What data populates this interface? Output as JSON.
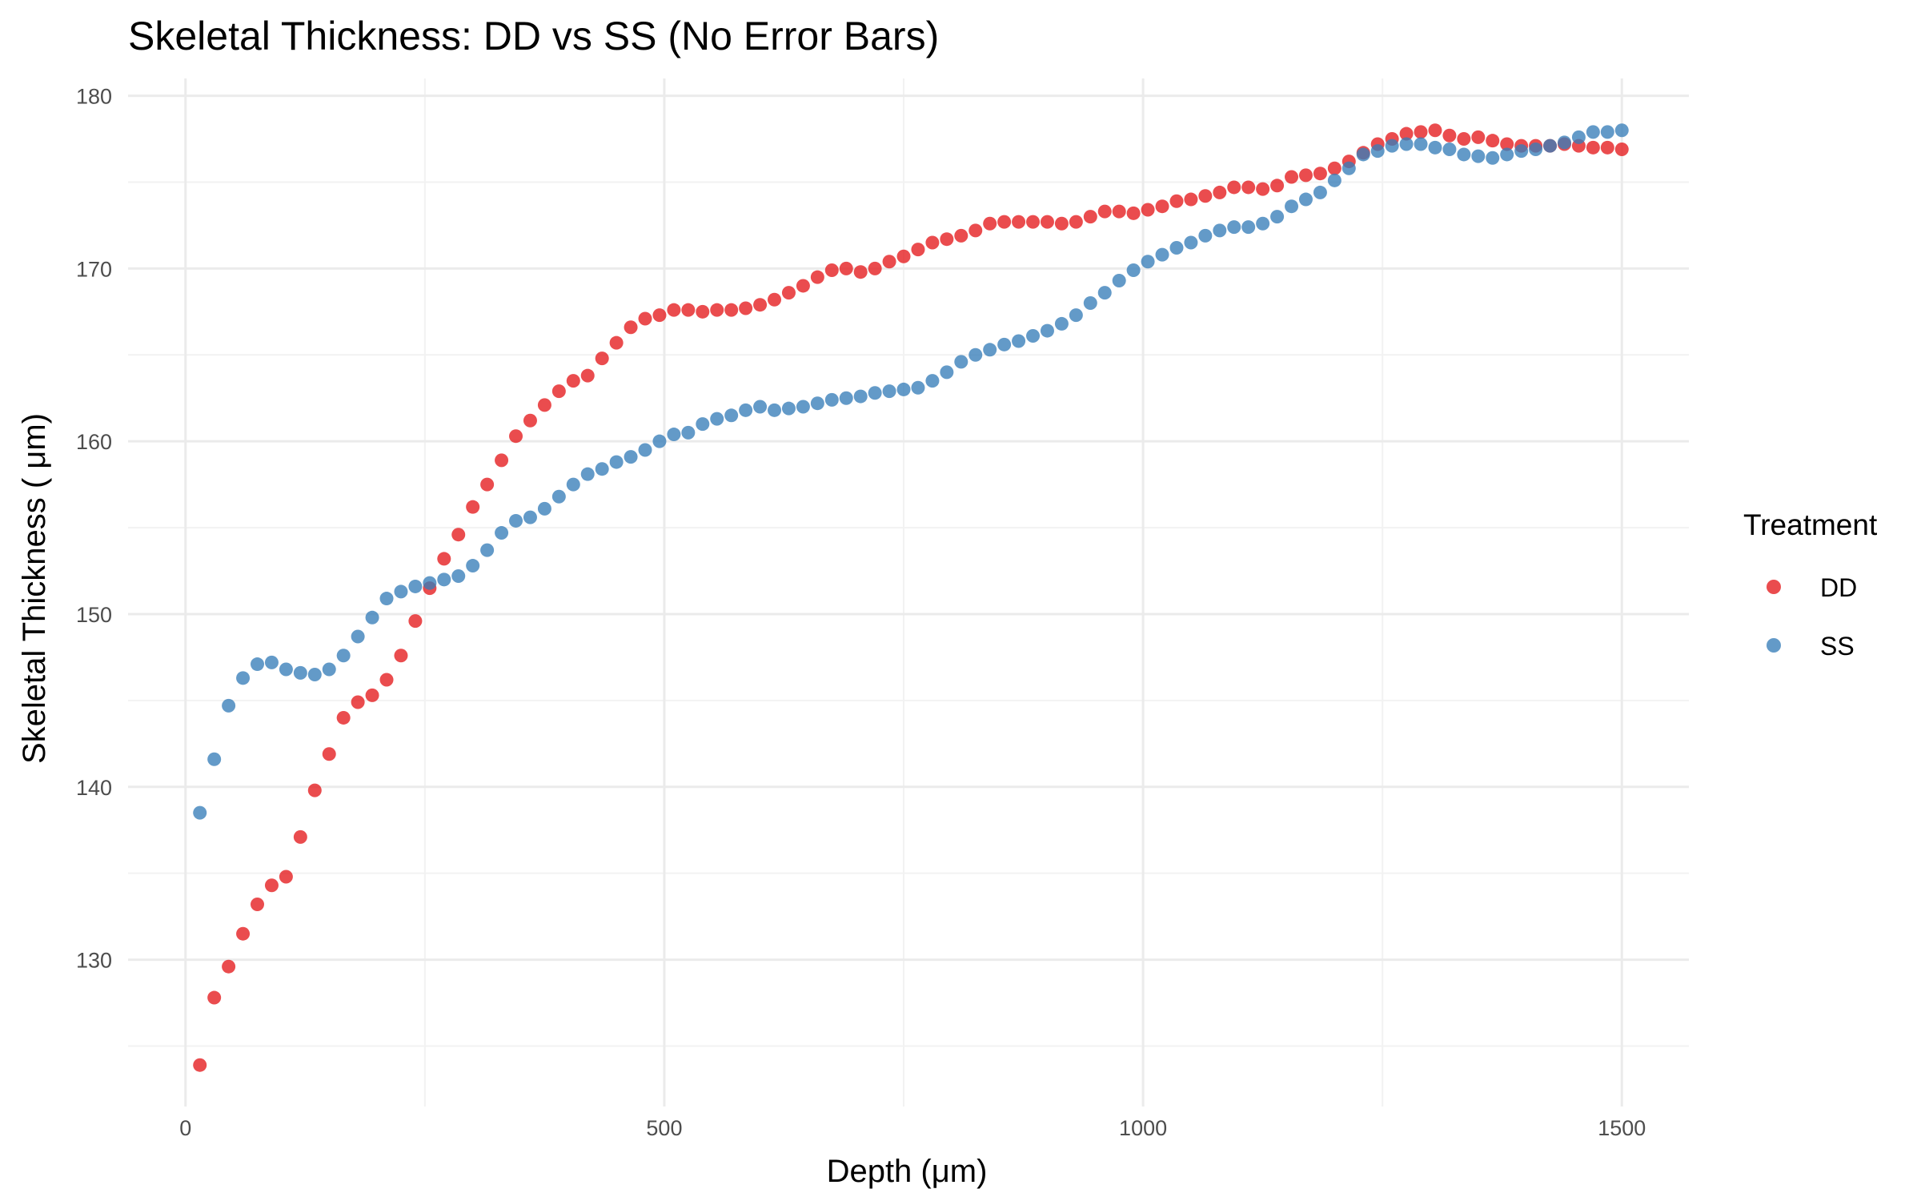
{
  "chart_data": {
    "type": "scatter",
    "title": "Skeletal Thickness: DD vs SS (No Error Bars)",
    "xlabel": "Depth (μm)",
    "ylabel": "Skeletal Thickness ( μm)",
    "xlim": [
      -60,
      1570
    ],
    "ylim": [
      121.5,
      181
    ],
    "x_ticks": [
      0,
      500,
      1000,
      1500
    ],
    "y_ticks": [
      130,
      140,
      150,
      160,
      170,
      180
    ],
    "grid": true,
    "legend": {
      "title": "Treatment",
      "position": "right"
    },
    "x": [
      15,
      30,
      45,
      60,
      75,
      90,
      105,
      120,
      135,
      150,
      165,
      180,
      195,
      210,
      225,
      240,
      255,
      270,
      285,
      300,
      315,
      330,
      345,
      360,
      375,
      390,
      405,
      420,
      435,
      450,
      465,
      480,
      495,
      510,
      525,
      540,
      555,
      570,
      585,
      600,
      615,
      630,
      645,
      660,
      675,
      690,
      705,
      720,
      735,
      750,
      765,
      780,
      795,
      810,
      825,
      840,
      855,
      870,
      885,
      900,
      915,
      930,
      945,
      960,
      975,
      990,
      1005,
      1020,
      1035,
      1050,
      1065,
      1080,
      1095,
      1110,
      1125,
      1140,
      1155,
      1170,
      1185,
      1200,
      1215,
      1230,
      1245,
      1260,
      1275,
      1290,
      1305,
      1320,
      1335,
      1350,
      1365,
      1380,
      1395,
      1410,
      1425,
      1440,
      1455,
      1470,
      1485,
      1500
    ],
    "series": [
      {
        "name": "DD",
        "color": "#E41A1C",
        "values": [
          123.9,
          127.8,
          129.6,
          131.5,
          133.2,
          134.3,
          134.8,
          137.1,
          139.8,
          141.9,
          144.0,
          144.9,
          145.3,
          146.2,
          147.6,
          149.6,
          151.5,
          153.2,
          154.6,
          156.2,
          157.5,
          158.9,
          160.3,
          161.2,
          162.1,
          162.9,
          163.5,
          163.8,
          164.8,
          165.7,
          166.6,
          167.1,
          167.3,
          167.6,
          167.6,
          167.5,
          167.6,
          167.6,
          167.7,
          167.9,
          168.2,
          168.6,
          169.0,
          169.5,
          169.9,
          170.0,
          169.8,
          170.0,
          170.4,
          170.7,
          171.1,
          171.5,
          171.7,
          171.9,
          172.2,
          172.6,
          172.7,
          172.7,
          172.7,
          172.7,
          172.6,
          172.7,
          173.0,
          173.3,
          173.3,
          173.2,
          173.4,
          173.6,
          173.9,
          174.0,
          174.2,
          174.4,
          174.7,
          174.7,
          174.6,
          174.8,
          175.3,
          175.4,
          175.5,
          175.8,
          176.2,
          176.7,
          177.2,
          177.5,
          177.8,
          177.9,
          178.0,
          177.7,
          177.5,
          177.6,
          177.4,
          177.2,
          177.1,
          177.1,
          177.1,
          177.2,
          177.1,
          177.0,
          177.0,
          176.9
        ]
      },
      {
        "name": "SS",
        "color": "#377EB8",
        "values": [
          138.5,
          141.6,
          144.7,
          146.3,
          147.1,
          147.2,
          146.8,
          146.6,
          146.5,
          146.8,
          147.6,
          148.7,
          149.8,
          150.9,
          151.3,
          151.6,
          151.8,
          152.0,
          152.2,
          152.8,
          153.7,
          154.7,
          155.4,
          155.6,
          156.1,
          156.8,
          157.5,
          158.1,
          158.4,
          158.8,
          159.1,
          159.5,
          160.0,
          160.4,
          160.5,
          161.0,
          161.3,
          161.5,
          161.8,
          162.0,
          161.8,
          161.9,
          162.0,
          162.2,
          162.4,
          162.5,
          162.6,
          162.8,
          162.9,
          163.0,
          163.1,
          163.5,
          164.0,
          164.6,
          165.0,
          165.3,
          165.6,
          165.8,
          166.1,
          166.4,
          166.8,
          167.3,
          168.0,
          168.6,
          169.3,
          169.9,
          170.4,
          170.8,
          171.2,
          171.5,
          171.9,
          172.2,
          172.4,
          172.4,
          172.6,
          173.0,
          173.6,
          174.0,
          174.4,
          175.1,
          175.8,
          176.6,
          176.8,
          177.1,
          177.2,
          177.2,
          177.0,
          176.9,
          176.6,
          176.5,
          176.4,
          176.6,
          176.8,
          176.9,
          177.1,
          177.3,
          177.6,
          177.9,
          177.9,
          178.0
        ]
      }
    ]
  }
}
